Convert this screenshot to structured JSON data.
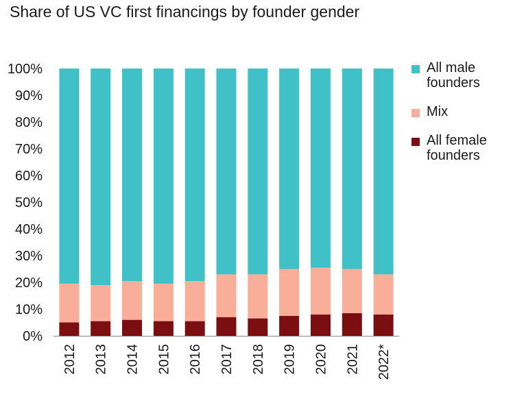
{
  "title": "Share of US VC first financings by founder gender",
  "colors": {
    "all_male": "#40C1C8",
    "mix": "#F8AE98",
    "all_female": "#7A0E10",
    "axis": "#888888",
    "text": "#1a1a1a"
  },
  "legend": [
    {
      "label": "All male founders",
      "series": "all_male"
    },
    {
      "label": "Mix",
      "series": "mix"
    },
    {
      "label": "All female founders",
      "series": "all_female"
    }
  ],
  "chart_data": {
    "type": "bar",
    "stacked": true,
    "title": "Share of US VC first financings by founder gender",
    "categories": [
      "2012",
      "2013",
      "2014",
      "2015",
      "2016",
      "2017",
      "2018",
      "2019",
      "2020",
      "2021",
      "2022*"
    ],
    "y_ticks": [
      "0%",
      "10%",
      "20%",
      "30%",
      "40%",
      "50%",
      "60%",
      "70%",
      "80%",
      "90%",
      "100%"
    ],
    "ylim": [
      0,
      100
    ],
    "legend_position": "right",
    "grid": false,
    "series": [
      {
        "name": "All female founders",
        "key": "all_female",
        "values": [
          5,
          5.5,
          6,
          5.5,
          5.5,
          7,
          6.5,
          7.5,
          8,
          8.5,
          8
        ]
      },
      {
        "name": "Mix",
        "key": "mix",
        "values": [
          14.5,
          13.5,
          14.5,
          14,
          15,
          16,
          16.5,
          17.5,
          17.5,
          16.5,
          15
        ]
      },
      {
        "name": "All male founders",
        "key": "all_male",
        "values": [
          80.5,
          81,
          79.5,
          80.5,
          79.5,
          77,
          77,
          75,
          74.5,
          75,
          77
        ]
      }
    ]
  }
}
